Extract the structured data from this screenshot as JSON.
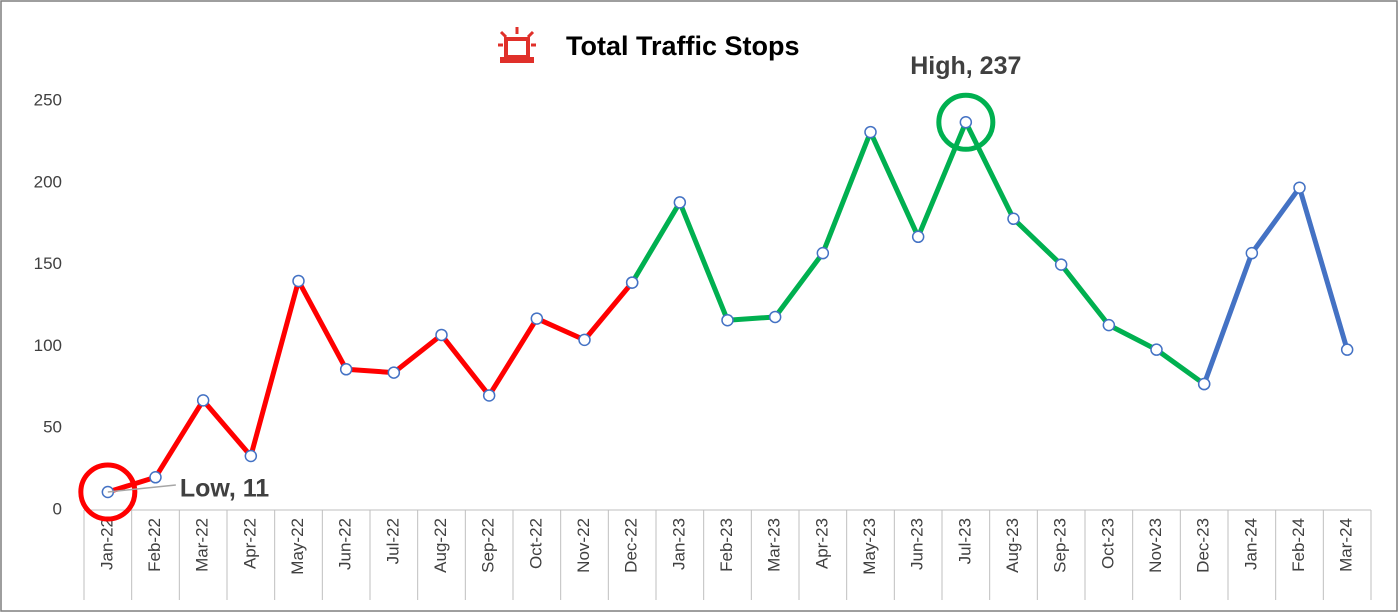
{
  "chart_data": {
    "type": "line",
    "title": "Total Traffic Stops",
    "categories": [
      "Jan-22",
      "Feb-22",
      "Mar-22",
      "Apr-22",
      "May-22",
      "Jun-22",
      "Jul-22",
      "Aug-22",
      "Sep-22",
      "Oct-22",
      "Nov-22",
      "Dec-22",
      "Jan-23",
      "Feb-23",
      "Mar-23",
      "Apr-23",
      "May-23",
      "Jun-23",
      "Jul-23",
      "Aug-23",
      "Sep-23",
      "Oct-23",
      "Nov-23",
      "Dec-23",
      "Jan-24",
      "Feb-24",
      "Mar-24"
    ],
    "series": [
      {
        "color": "#ff0000",
        "values": [
          11,
          20,
          67,
          33,
          140,
          86,
          84,
          107,
          70,
          117,
          104,
          139,
          null,
          null,
          null,
          null,
          null,
          null,
          null,
          null,
          null,
          null,
          null,
          null,
          null,
          null,
          null
        ]
      },
      {
        "color": "#00b050",
        "values": [
          null,
          null,
          null,
          null,
          null,
          null,
          null,
          null,
          null,
          null,
          null,
          139,
          188,
          116,
          118,
          157,
          231,
          167,
          237,
          178,
          150,
          113,
          98,
          77,
          null,
          null,
          null
        ]
      },
      {
        "color": "#4472c4",
        "values": [
          null,
          null,
          null,
          null,
          null,
          null,
          null,
          null,
          null,
          null,
          null,
          null,
          null,
          null,
          null,
          null,
          null,
          null,
          null,
          null,
          null,
          null,
          null,
          77,
          157,
          197,
          98
        ]
      }
    ],
    "annotations": [
      {
        "text": "Low, 11",
        "category": "Jan-22",
        "color": "#ff0000"
      },
      {
        "text": "High, 237",
        "category": "Jul-23",
        "color": "#00b050"
      }
    ],
    "marker_color": "#4472c4",
    "ylim": [
      0,
      250
    ],
    "yticks": [
      0,
      50,
      100,
      150,
      200,
      250
    ],
    "grid": false
  }
}
